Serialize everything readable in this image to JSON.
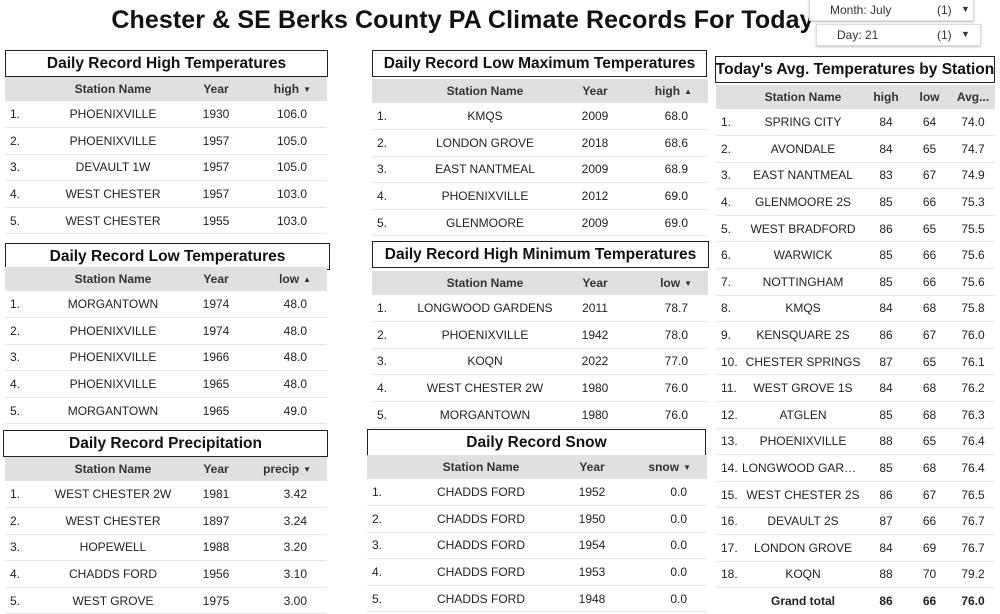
{
  "page": {
    "title": "Chester & SE Berks County PA Climate Records For Today"
  },
  "filters": {
    "month": {
      "label": "Month: July",
      "count": "(1)"
    },
    "day": {
      "label": "Day: 21",
      "count": "(1)"
    }
  },
  "high_temps": {
    "title": "Daily Record High Temperatures",
    "headers": {
      "station": "Station Name",
      "year": "Year",
      "value": "high",
      "sort": "▼"
    },
    "rows": [
      {
        "idx": "1.",
        "station": "PHOENIXVILLE",
        "year": "1930",
        "value": "106.0"
      },
      {
        "idx": "2.",
        "station": "PHOENIXVILLE",
        "year": "1957",
        "value": "105.0"
      },
      {
        "idx": "3.",
        "station": "DEVAULT 1W",
        "year": "1957",
        "value": "105.0"
      },
      {
        "idx": "4.",
        "station": "WEST CHESTER",
        "year": "1957",
        "value": "103.0"
      },
      {
        "idx": "5.",
        "station": "WEST CHESTER",
        "year": "1955",
        "value": "103.0"
      }
    ]
  },
  "low_temps": {
    "title": "Daily Record Low Temperatures",
    "headers": {
      "station": "Station Name",
      "year": "Year",
      "value": "low",
      "sort": "▲"
    },
    "rows": [
      {
        "idx": "1.",
        "station": "MORGANTOWN",
        "year": "1974",
        "value": "48.0"
      },
      {
        "idx": "2.",
        "station": "PHOENIXVILLE",
        "year": "1974",
        "value": "48.0"
      },
      {
        "idx": "3.",
        "station": "PHOENIXVILLE",
        "year": "1966",
        "value": "48.0"
      },
      {
        "idx": "4.",
        "station": "PHOENIXVILLE",
        "year": "1965",
        "value": "48.0"
      },
      {
        "idx": "5.",
        "station": "MORGANTOWN",
        "year": "1965",
        "value": "49.0"
      }
    ]
  },
  "precip": {
    "title": "Daily Record Precipitation",
    "headers": {
      "station": "Station Name",
      "year": "Year",
      "value": "precip",
      "sort": "▼"
    },
    "rows": [
      {
        "idx": "1.",
        "station": "WEST CHESTER 2W",
        "year": "1981",
        "value": "3.42"
      },
      {
        "idx": "2.",
        "station": "WEST CHESTER",
        "year": "1897",
        "value": "3.24"
      },
      {
        "idx": "3.",
        "station": "HOPEWELL",
        "year": "1988",
        "value": "3.20"
      },
      {
        "idx": "4.",
        "station": "CHADDS FORD",
        "year": "1956",
        "value": "3.10"
      },
      {
        "idx": "5.",
        "station": "WEST GROVE",
        "year": "1975",
        "value": "3.00"
      }
    ]
  },
  "low_max": {
    "title": "Daily Record Low Maximum Temperatures",
    "headers": {
      "station": "Station Name",
      "year": "Year",
      "value": "high",
      "sort": "▲"
    },
    "rows": [
      {
        "idx": "1.",
        "station": "KMQS",
        "year": "2009",
        "value": "68.0"
      },
      {
        "idx": "2.",
        "station": "LONDON GROVE",
        "year": "2018",
        "value": "68.6"
      },
      {
        "idx": "3.",
        "station": "EAST NANTMEAL",
        "year": "2009",
        "value": "68.9"
      },
      {
        "idx": "4.",
        "station": "PHOENIXVILLE",
        "year": "2012",
        "value": "69.0"
      },
      {
        "idx": "5.",
        "station": "GLENMOORE",
        "year": "2009",
        "value": "69.0"
      }
    ]
  },
  "high_min": {
    "title": "Daily Record High Minimum Temperatures",
    "headers": {
      "station": "Station Name",
      "year": "Year",
      "value": "low",
      "sort": "▼"
    },
    "rows": [
      {
        "idx": "1.",
        "station": "LONGWOOD GARDENS",
        "year": "2011",
        "value": "78.7"
      },
      {
        "idx": "2.",
        "station": "PHOENIXVILLE",
        "year": "1942",
        "value": "78.0"
      },
      {
        "idx": "3.",
        "station": "KOQN",
        "year": "2022",
        "value": "77.0"
      },
      {
        "idx": "4.",
        "station": "WEST CHESTER 2W",
        "year": "1980",
        "value": "76.0"
      },
      {
        "idx": "5.",
        "station": "MORGANTOWN",
        "year": "1980",
        "value": "76.0"
      }
    ]
  },
  "snow": {
    "title": "Daily Record Snow",
    "headers": {
      "station": "Station Name",
      "year": "Year",
      "value": "snow",
      "sort": "▼"
    },
    "rows": [
      {
        "idx": "1.",
        "station": "CHADDS FORD",
        "year": "1952",
        "value": "0.0"
      },
      {
        "idx": "2.",
        "station": "CHADDS FORD",
        "year": "1950",
        "value": "0.0"
      },
      {
        "idx": "3.",
        "station": "CHADDS FORD",
        "year": "1954",
        "value": "0.0"
      },
      {
        "idx": "4.",
        "station": "CHADDS FORD",
        "year": "1953",
        "value": "0.0"
      },
      {
        "idx": "5.",
        "station": "CHADDS FORD",
        "year": "1948",
        "value": "0.0"
      }
    ]
  },
  "avg": {
    "title": "Today's Avg. Temperatures by Station",
    "headers": {
      "station": "Station Name",
      "high": "high",
      "low": "low",
      "avg": "Avg..."
    },
    "rows": [
      {
        "idx": "1.",
        "station": "SPRING CITY",
        "high": "84",
        "low": "64",
        "avg": "74.0"
      },
      {
        "idx": "2.",
        "station": "AVONDALE",
        "high": "84",
        "low": "65",
        "avg": "74.7"
      },
      {
        "idx": "3.",
        "station": "EAST NANTMEAL",
        "high": "83",
        "low": "67",
        "avg": "74.9"
      },
      {
        "idx": "4.",
        "station": "GLENMOORE 2S",
        "high": "85",
        "low": "66",
        "avg": "75.3"
      },
      {
        "idx": "5.",
        "station": "WEST BRADFORD",
        "high": "86",
        "low": "65",
        "avg": "75.5"
      },
      {
        "idx": "6.",
        "station": "WARWICK",
        "high": "85",
        "low": "66",
        "avg": "75.6"
      },
      {
        "idx": "7.",
        "station": "NOTTINGHAM",
        "high": "85",
        "low": "66",
        "avg": "75.6"
      },
      {
        "idx": "8.",
        "station": "KMQS",
        "high": "84",
        "low": "68",
        "avg": "75.8"
      },
      {
        "idx": "9.",
        "station": "KENSQUARE 2S",
        "high": "86",
        "low": "67",
        "avg": "76.0"
      },
      {
        "idx": "10.",
        "station": "CHESTER SPRINGS",
        "high": "87",
        "low": "65",
        "avg": "76.1"
      },
      {
        "idx": "11.",
        "station": "WEST GROVE 1S",
        "high": "84",
        "low": "68",
        "avg": "76.2"
      },
      {
        "idx": "12.",
        "station": "ATGLEN",
        "high": "85",
        "low": "68",
        "avg": "76.3"
      },
      {
        "idx": "13.",
        "station": "PHOENIXVILLE",
        "high": "88",
        "low": "65",
        "avg": "76.4"
      },
      {
        "idx": "14.",
        "station": "LONGWOOD GARDE...",
        "high": "85",
        "low": "68",
        "avg": "76.4"
      },
      {
        "idx": "15.",
        "station": "WEST CHESTER 2S",
        "high": "86",
        "low": "67",
        "avg": "76.5"
      },
      {
        "idx": "16.",
        "station": "DEVAULT 2S",
        "high": "87",
        "low": "66",
        "avg": "76.7"
      },
      {
        "idx": "17.",
        "station": "LONDON GROVE",
        "high": "84",
        "low": "69",
        "avg": "76.7"
      },
      {
        "idx": "18.",
        "station": "KOQN",
        "high": "88",
        "low": "70",
        "avg": "79.2"
      }
    ],
    "total": {
      "label": "Grand total",
      "high": "86",
      "low": "66",
      "avg": "76.0"
    }
  }
}
